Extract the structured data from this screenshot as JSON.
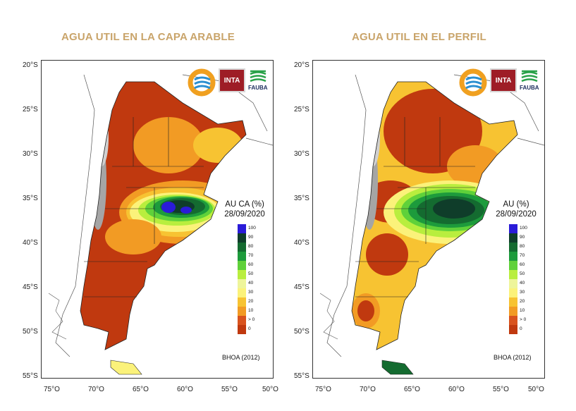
{
  "panels": [
    {
      "title": "AGUA UTIL EN LA CAPA ARABLE",
      "legend_title": "AU CA (%)",
      "date": "28/09/2020",
      "source": "BHOA (2012)"
    },
    {
      "title": "AGUA UTIL EN EL PERFIL",
      "legend_title": "AU (%)",
      "date": "28/09/2020",
      "source": "BHOA (2012)"
    }
  ],
  "lat_labels": [
    "20°S",
    "25°S",
    "30°S",
    "35°S",
    "40°S",
    "45°S",
    "50°S",
    "55°S"
  ],
  "lon_labels": [
    "75°O",
    "70°O",
    "65°O",
    "60°O",
    "55°O",
    "50°O"
  ],
  "legend": [
    {
      "label": "100",
      "color": "#2a1bd8"
    },
    {
      "label": "90",
      "color": "#0f3d2a"
    },
    {
      "label": "80",
      "color": "#146b30"
    },
    {
      "label": "70",
      "color": "#1d9b3c"
    },
    {
      "label": "60",
      "color": "#5fd13a"
    },
    {
      "label": "50",
      "color": "#b9ee3e"
    },
    {
      "label": "40",
      "color": "#eef59a"
    },
    {
      "label": "30",
      "color": "#fbf27a"
    },
    {
      "label": "20",
      "color": "#f7c332"
    },
    {
      "label": "10",
      "color": "#f29b24"
    },
    {
      "label": "> 0",
      "color": "#d9531e"
    },
    {
      "label": "0",
      "color": "#c0390f"
    }
  ],
  "logos": {
    "inta": "INTA",
    "fauba": "FAUBA"
  }
}
